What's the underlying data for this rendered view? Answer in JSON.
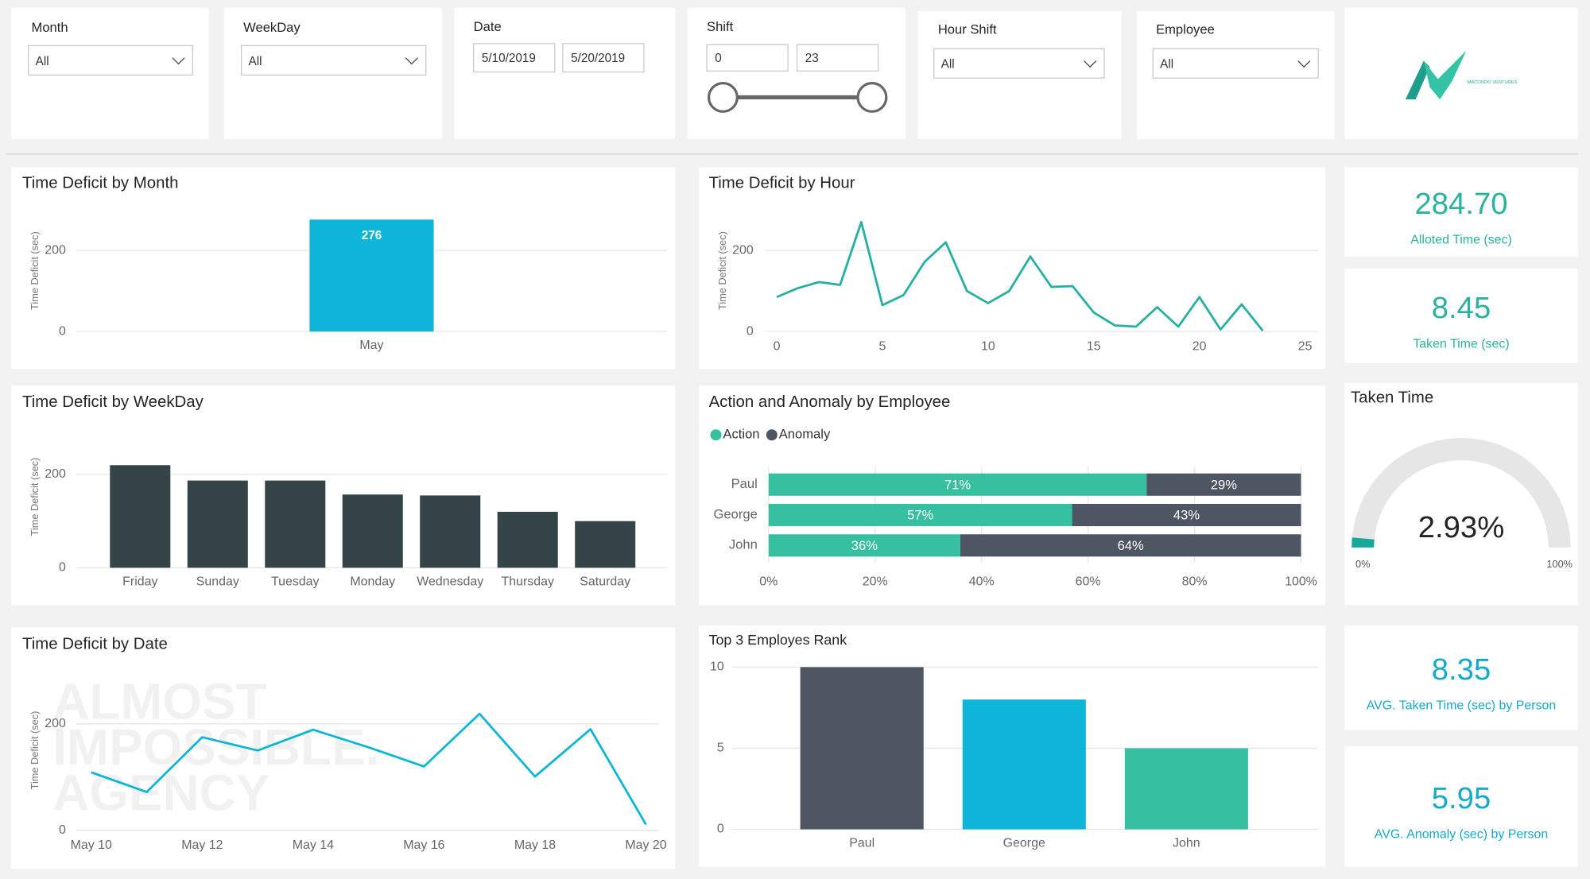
{
  "filters": [
    {
      "label": "Month",
      "value": "All"
    },
    {
      "label": "WeekDay",
      "value": "All"
    },
    {
      "label": "Date",
      "from": "5/10/2019",
      "to": "5/20/2019"
    },
    {
      "label": "Shift",
      "from": "0",
      "to": "23"
    },
    {
      "label": "Hour Shift",
      "value": "All"
    },
    {
      "label": "Employee",
      "value": "All"
    }
  ],
  "logo": {
    "text": "MACONDO VENTURES"
  },
  "cards": [
    {
      "value": "284.70",
      "label": "Alloted Time (sec)",
      "color": "#2bb29c"
    },
    {
      "value": "8.45",
      "label": "Taken Time (sec)",
      "color": "#2bb29c"
    },
    {
      "value": "8.35",
      "label": "AVG. Taken Time (sec) by Person",
      "color": "#17a9c9"
    },
    {
      "value": "5.95",
      "label": "AVG. Anomaly (sec) by Person",
      "color": "#17a9c9"
    }
  ],
  "chart_data": [
    {
      "type": "bar",
      "title": "Time Deficit by Month",
      "y_label": "Time Deficit (sec)",
      "categories": [
        "May"
      ],
      "values": [
        276
      ],
      "color": "#0fb5d9",
      "data_labels": true,
      "ylim": [
        0,
        300
      ],
      "yticks": [
        0,
        200
      ],
      "grid": true
    },
    {
      "type": "line",
      "title": "Time Deficit by Hour",
      "y_label": "Time Deficit (sec)",
      "x": [
        0,
        1,
        2,
        3,
        4,
        5,
        6,
        7,
        8,
        9,
        10,
        11,
        12,
        13,
        14,
        15,
        16,
        17,
        18,
        19,
        20,
        21,
        22,
        23
      ],
      "values": [
        85,
        107,
        122,
        115,
        270,
        65,
        90,
        172,
        220,
        100,
        70,
        100,
        185,
        110,
        112,
        47,
        15,
        12,
        60,
        12,
        85,
        5,
        67,
        2
      ],
      "color": "#26b0a0",
      "xlim": [
        0,
        25
      ],
      "xticks": [
        0,
        5,
        10,
        15,
        20,
        25
      ],
      "ylim": [
        0,
        300
      ],
      "yticks": [
        0,
        200
      ],
      "grid": true
    },
    {
      "type": "bar",
      "title": "Time Deficit  by WeekDay",
      "y_label": "Time Deficit (sec)",
      "categories": [
        "Friday",
        "Sunday",
        "Tuesday",
        "Monday",
        "Wednesday",
        "Thursday",
        "Saturday"
      ],
      "values": [
        220,
        187,
        187,
        157,
        155,
        120,
        100
      ],
      "color": "#344448",
      "ylim": [
        0,
        250
      ],
      "yticks": [
        0,
        200
      ],
      "grid": true
    },
    {
      "type": "bar",
      "orientation": "horizontal",
      "stacked": true,
      "title": "Action and Anomaly  by Employee",
      "legend": "top-left",
      "categories": [
        "Paul",
        "George",
        "John"
      ],
      "series": [
        {
          "name": "Action",
          "color": "#37c0a0",
          "values": [
            71,
            57,
            36
          ],
          "value_labels": [
            "71%",
            "57%",
            "36%"
          ]
        },
        {
          "name": "Anomaly",
          "color": "#4e5663",
          "values": [
            29,
            43,
            64
          ],
          "value_labels": [
            "29%",
            "43%",
            "64%"
          ]
        }
      ],
      "xlim": [
        0,
        100
      ],
      "xticks": [
        {
          "value": 0,
          "label": "0%"
        },
        {
          "value": 20,
          "label": "20%"
        },
        {
          "value": 40,
          "label": "40%"
        },
        {
          "value": 60,
          "label": "60%"
        },
        {
          "value": 80,
          "label": "80%"
        },
        {
          "value": 100,
          "label": "100%"
        }
      ],
      "grid": true
    },
    {
      "type": "line",
      "title": "Time Deficit by Date",
      "y_label": "Time Deficit (sec)",
      "categories": [
        "May 10",
        null,
        "May 12",
        null,
        "May 14",
        null,
        "May 16",
        null,
        "May 18",
        null,
        "May 20"
      ],
      "values": [
        109,
        72,
        175,
        150,
        189,
        156,
        120,
        219,
        101,
        190,
        11
      ],
      "color": "#0fb5d9",
      "watermark": [
        "ALMOST",
        "IMPOSSIBLE.",
        "AGENCY"
      ],
      "ylim": [
        0,
        240
      ],
      "yticks": [
        0,
        200
      ],
      "grid": true
    },
    {
      "type": "bar",
      "title": "Top 3 Employes Rank",
      "categories": [
        "Paul",
        "George",
        "John"
      ],
      "values": [
        10,
        8,
        5
      ],
      "colors": [
        "#4e5663",
        "#0fb5d9",
        "#37c0a0"
      ],
      "ylim": [
        0,
        10
      ],
      "yticks": [
        0,
        5,
        10
      ],
      "grid": true
    },
    {
      "type": "gauge",
      "title": "Taken Time",
      "value": 2.93,
      "value_label": "2.93%",
      "color": "#16a99a",
      "ylim": [
        0,
        100
      ],
      "yticks": [
        {
          "value": 0,
          "label": "0%"
        },
        {
          "value": 100,
          "label": "100%"
        }
      ]
    }
  ]
}
